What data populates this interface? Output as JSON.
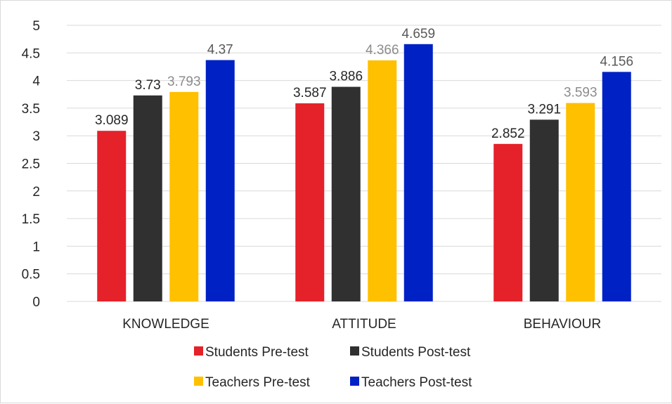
{
  "chart_data": {
    "type": "bar",
    "categories": [
      "KNOWLEDGE",
      "ATTITUDE",
      "BEHAVIOUR"
    ],
    "series": [
      {
        "name": "Students Pre-test",
        "values": [
          3.089,
          3.587,
          2.852
        ],
        "labels": [
          "3.089",
          "3.587",
          "2.852"
        ],
        "color": "#e52129",
        "label_color": "#262626"
      },
      {
        "name": "Students Post-test",
        "values": [
          3.73,
          3.886,
          3.291
        ],
        "labels": [
          "3.73",
          "3.886",
          "3.291"
        ],
        "color": "#303030",
        "label_color": "#262626"
      },
      {
        "name": "Teachers Pre-test",
        "values": [
          3.793,
          4.366,
          3.593
        ],
        "labels": [
          "3.793",
          "4.366",
          "3.593"
        ],
        "color": "#ffc000",
        "label_color": "#8c8c8c"
      },
      {
        "name": "Teachers Post-test",
        "values": [
          4.37,
          4.659,
          4.156
        ],
        "labels": [
          "4.37",
          "4.659",
          "4.156"
        ],
        "color": "#0021c4",
        "label_color": "#595959"
      }
    ],
    "ylim": [
      0,
      5
    ],
    "yticks": [
      "0",
      "0.5",
      "1",
      "1.5",
      "2",
      "2.5",
      "3",
      "3.5",
      "4",
      "4.5",
      "5"
    ],
    "title": "",
    "xlabel": "",
    "ylabel": "",
    "grid": true,
    "legend_position": "bottom",
    "gridline_color": "#d9d9d9"
  }
}
